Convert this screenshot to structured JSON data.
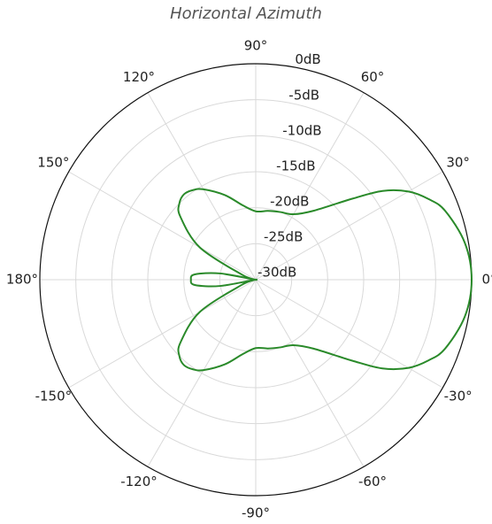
{
  "chart_data": {
    "type": "line",
    "title": "Horizontal Azimuth",
    "projection": "polar",
    "radial_axis": {
      "unit": "dB",
      "range": [
        -30,
        0
      ],
      "ticks": [
        0,
        -5,
        -10,
        -15,
        -20,
        -25,
        -30
      ],
      "tick_labels": [
        "0dB",
        "-5dB",
        "-10dB",
        "-15dB",
        "-20dB",
        "-25dB",
        "-30dB"
      ],
      "label_angle_deg": 80
    },
    "angular_axis": {
      "unit": "degrees",
      "ticks": [
        0,
        30,
        60,
        90,
        120,
        150,
        180,
        -150,
        -120,
        -90,
        -60,
        -30
      ],
      "tick_labels": [
        "0°",
        "30°",
        "60°",
        "90°",
        "120°",
        "150°",
        "180°",
        "-150°",
        "-120°",
        "-90°",
        "-60°",
        "-30°"
      ],
      "zero_direction": "east",
      "direction": "counterclockwise"
    },
    "grid": true,
    "series": [
      {
        "color": "#2a8a2a",
        "angles_deg": [
          0,
          10,
          20,
          25,
          30,
          35,
          40,
          50,
          60,
          70,
          80,
          90,
          100,
          110,
          120,
          125,
          130,
          135,
          140,
          150,
          160,
          165,
          170,
          175,
          180,
          -175,
          -170,
          -165,
          -160,
          -150,
          -140,
          -135,
          -130,
          -125,
          -120,
          -110,
          -100,
          -90,
          -80,
          -70,
          -60,
          -50,
          -40,
          -35,
          -30,
          -25,
          -20,
          -10
        ],
        "values_db": [
          0,
          -0.5,
          -2,
          -3.5,
          -5.5,
          -8.5,
          -12.5,
          -17.5,
          -19.5,
          -20,
          -20.3,
          -20.5,
          -19.5,
          -17.5,
          -15.5,
          -14.8,
          -14.5,
          -15,
          -16.3,
          -21,
          -28,
          -30,
          -25,
          -21.5,
          -21,
          -21.5,
          -25,
          -30,
          -28,
          -21,
          -16.3,
          -15,
          -14.5,
          -14.8,
          -15.5,
          -17.5,
          -19.5,
          -20.5,
          -20.3,
          -20,
          -19.5,
          -17.5,
          -12.5,
          -8.5,
          -5.5,
          -3.5,
          -2,
          -0.5
        ]
      }
    ]
  }
}
